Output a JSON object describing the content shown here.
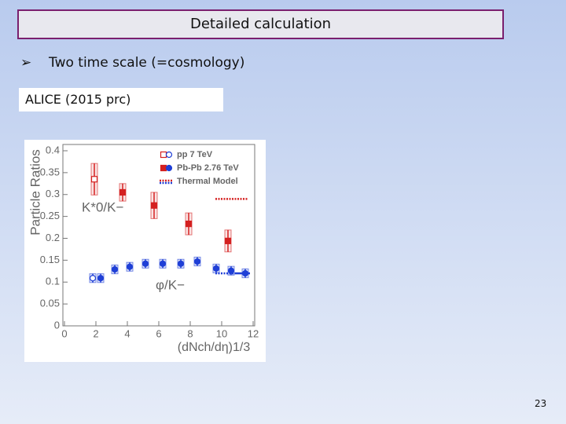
{
  "title": "Detailed calculation",
  "bullets": [
    "Two time scale (=cosmology)"
  ],
  "caption": "ALICE  (2015 prc)",
  "page_number": 23,
  "chart_data": {
    "type": "scatter",
    "ylabel": "Particle Ratios",
    "xlabel": "(dNch/dη)1/3",
    "annotations": [
      "K*0/K−",
      "φ/K−"
    ],
    "xlim": [
      0,
      12
    ],
    "xticks": [
      0,
      2,
      4,
      6,
      8,
      10,
      12
    ],
    "ylim": [
      0,
      0.4
    ],
    "yticks": [
      0,
      0.05,
      0.1,
      0.15,
      0.2,
      0.25,
      0.3,
      0.35,
      0.4
    ],
    "series": [
      {
        "name": "pp 7 TeV",
        "marker": "open",
        "color": "#d42020",
        "x": [
          1.9
        ],
        "values": [
          0.335
        ],
        "errors": [
          0.036
        ]
      },
      {
        "marker": "open",
        "color": "#1f3fd6",
        "x": [
          1.8
        ],
        "values": [
          0.109
        ],
        "errors": [
          0.01
        ]
      },
      {
        "name": "Pb-Pb 2.76 TeV",
        "marker": "filled",
        "color": "#d42020",
        "x": [
          3.7,
          5.7,
          7.9,
          10.4
        ],
        "values": [
          0.305,
          0.275,
          0.233,
          0.194
        ],
        "errors": [
          0.02,
          0.03,
          0.025,
          0.025
        ]
      },
      {
        "marker": "filled",
        "color": "#1f3fd6",
        "x": [
          2.3,
          3.2,
          4.15,
          5.15,
          6.25,
          7.4,
          8.45,
          9.65,
          10.6,
          11.5
        ],
        "values": [
          0.109,
          0.129,
          0.135,
          0.142,
          0.142,
          0.142,
          0.147,
          0.131,
          0.126,
          0.12
        ],
        "errors": [
          0.01,
          0.01,
          0.01,
          0.01,
          0.01,
          0.01,
          0.01,
          0.01,
          0.01,
          0.01
        ]
      }
    ],
    "thermal": {
      "name": "Thermal Model",
      "lines": [
        {
          "color": "#d42020",
          "style": "dotted",
          "x": [
            9.6,
            11.7
          ],
          "values": [
            0.29,
            0.29
          ]
        },
        {
          "color": "#1f3fd6",
          "style": "dotted",
          "x": [
            9.6,
            10.9
          ],
          "values": [
            0.12,
            0.12
          ]
        },
        {
          "color": "#1f3fd6",
          "style": "solid",
          "x": [
            10.9,
            11.8
          ],
          "values": [
            0.12,
            0.12
          ]
        }
      ]
    }
  }
}
